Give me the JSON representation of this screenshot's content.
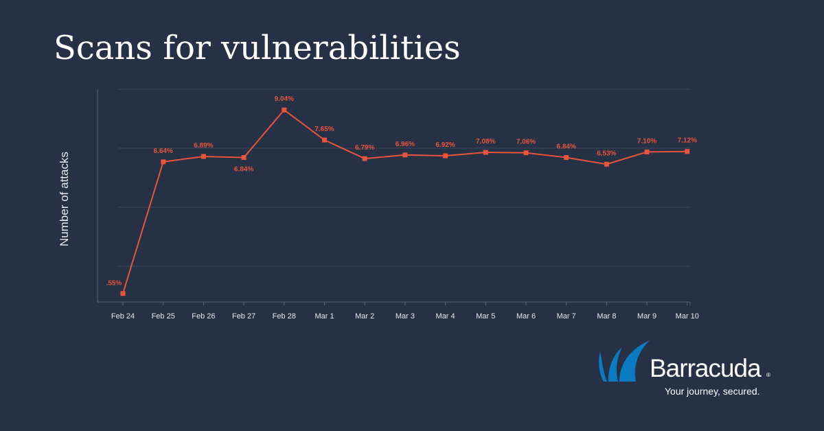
{
  "chart_data": {
    "type": "line",
    "title": "Scans for vulnerabilities",
    "xlabel": "",
    "ylabel": "Number of attacks",
    "categories": [
      "Feb 24",
      "Feb 25",
      "Feb 26",
      "Feb 27",
      "Feb 28",
      "Mar 1",
      "Mar 2",
      "Mar 3",
      "Mar 4",
      "Mar 5",
      "Mar 6",
      "Mar 7",
      "Mar 8",
      "Mar 9",
      "Mar 10"
    ],
    "series": [
      {
        "name": "Scans for vulnerabilities",
        "values": [
          0.55,
          6.64,
          6.89,
          6.84,
          9.04,
          7.65,
          6.79,
          6.96,
          6.92,
          7.08,
          7.06,
          6.84,
          6.53,
          7.1,
          7.12
        ],
        "labels": [
          ".55%",
          "6.64%",
          "6.89%",
          "6.84%",
          "9.04%",
          "7.65%",
          "6.79%",
          "6.96%",
          "6.92%",
          "7.08%",
          "7.06%",
          "6.84%",
          "6.53%",
          "7.10%",
          "7.12%"
        ],
        "color": "#e9543a"
      }
    ],
    "ylim": [
      0,
      10
    ],
    "grid": true,
    "background": "#263145"
  },
  "brand": {
    "name": "Barracuda",
    "registered_mark": "®",
    "tagline": "Your journey, secured.",
    "accent_color": "#0a7ac1"
  }
}
